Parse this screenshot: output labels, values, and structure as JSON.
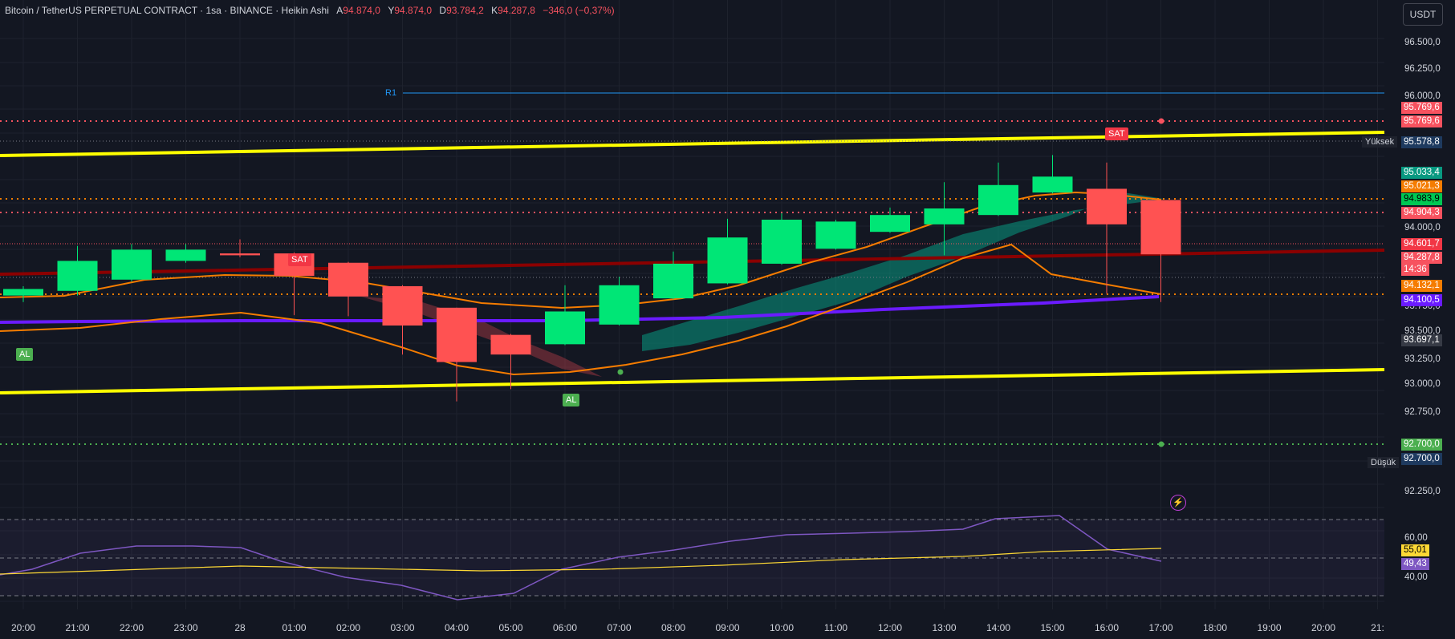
{
  "header": {
    "title": "Bitcoin / TetherUS PERPETUAL CONTRACT · 1sa · BINANCE · Heikin Ashi",
    "open_key": "A",
    "open_val": "94.874,0",
    "high_key": "Y",
    "high_val": "94.874,0",
    "low_key": "D",
    "low_val": "93.784,2",
    "close_key": "K",
    "close_val": "94.287,8",
    "change": "−346,0 (−0,37%)"
  },
  "currency_button": "USDT",
  "price_ticks": [
    "96.500,0",
    "96.250,0",
    "96.000,0",
    "94.750,0",
    "94.000,0",
    "93.750,0",
    "93.500,0",
    "93.250,0",
    "93.000,0",
    "92.750,0",
    "92.500,0",
    "92.250,0"
  ],
  "rsi_ticks": [
    "60,00",
    "40,00"
  ],
  "time_ticks": [
    "20:00",
    "21:00",
    "22:00",
    "23:00",
    "28",
    "01:00",
    "02:00",
    "03:00",
    "04:00",
    "05:00",
    "06:00",
    "07:00",
    "08:00",
    "09:00",
    "10:00",
    "11:00",
    "12:00",
    "13:00",
    "14:00",
    "15:00",
    "16:00",
    "17:00",
    "18:00",
    "19:00",
    "20:00",
    "21:"
  ],
  "price_labels": [
    {
      "text": "95.769,6",
      "bg": "#f7525f",
      "fg": "#ffffff"
    },
    {
      "text": "95.769,6",
      "bg": "#f7525f",
      "fg": "#ffffff"
    },
    {
      "text": "95.578,8",
      "bg": "#1e3a5f",
      "fg": "#ffffff"
    },
    {
      "text": "95.033,4",
      "bg": "#089981",
      "fg": "#ffffff"
    },
    {
      "text": "95.021,3",
      "bg": "#f57c00",
      "fg": "#ffffff"
    },
    {
      "text": "94.983,9",
      "bg": "#00c853",
      "fg": "#000000"
    },
    {
      "text": "94.904,3",
      "bg": "#f7525f",
      "fg": "#ffffff"
    },
    {
      "text": "94.601,7",
      "bg": "#f23645",
      "fg": "#ffffff"
    },
    {
      "text": "94.287,8",
      "bg": "#f7525f",
      "fg": "#ffffff"
    },
    {
      "text": "14:36",
      "bg": "#f7525f",
      "fg": "#ffffff"
    },
    {
      "text": "94.132,1",
      "bg": "#f57c00",
      "fg": "#ffffff"
    },
    {
      "text": "94.100,5",
      "bg": "#6a1bff",
      "fg": "#ffffff"
    },
    {
      "text": "93.697,1",
      "bg": "#363a45",
      "fg": "#ffffff"
    },
    {
      "text": "92.700,0",
      "bg": "#4caf50",
      "fg": "#ffffff"
    },
    {
      "text": "92.700,0",
      "bg": "#1e3a5f",
      "fg": "#ffffff"
    },
    {
      "text": "55,01",
      "bg": "#fdd835",
      "fg": "#000000"
    },
    {
      "text": "49,43",
      "bg": "#7e57c2",
      "fg": "#ffffff"
    }
  ],
  "side_tags": {
    "high": "Yüksek",
    "low": "Düşük"
  },
  "level_label": "R1",
  "signals": [
    "AL",
    "SAT",
    "AL",
    "SAT"
  ],
  "colors": {
    "up": "#00e676",
    "down": "#ff5252",
    "bg": "#131722",
    "grid": "#2a2e39",
    "yellow": "#ffff00",
    "purple": "#6a1bff",
    "orange": "#f57c00",
    "darkred": "#8b0000"
  },
  "chart_data": {
    "type": "candlestick",
    "timeframe": "1sa",
    "candles": [
      {
        "t": "20:00",
        "o": 93.85,
        "c": 93.92,
        "h": 93.95,
        "l": 93.78
      },
      {
        "t": "21:00",
        "o": 93.9,
        "c": 94.22,
        "h": 94.38,
        "l": 93.85
      },
      {
        "t": "22:00",
        "o": 94.02,
        "c": 94.34,
        "h": 94.4,
        "l": 94.0
      },
      {
        "t": "23:00",
        "o": 94.22,
        "c": 94.34,
        "h": 94.4,
        "l": 94.2
      },
      {
        "t": "00:00",
        "o": 94.3,
        "c": 94.28,
        "h": 94.45,
        "l": 94.26
      },
      {
        "t": "01:00",
        "o": 94.3,
        "c": 94.06,
        "h": 94.31,
        "l": 93.64
      },
      {
        "t": "02:00",
        "o": 94.2,
        "c": 93.84,
        "h": 94.21,
        "l": 93.63
      },
      {
        "t": "03:00",
        "o": 93.95,
        "c": 93.53,
        "h": 93.96,
        "l": 93.22
      },
      {
        "t": "04:00",
        "o": 93.72,
        "c": 93.14,
        "h": 93.72,
        "l": 92.72
      },
      {
        "t": "05:00",
        "o": 93.43,
        "c": 93.22,
        "h": 93.44,
        "l": 92.85
      },
      {
        "t": "06:00",
        "o": 93.33,
        "c": 93.68,
        "h": 93.96,
        "l": 93.32
      },
      {
        "t": "07:00",
        "o": 93.54,
        "c": 93.96,
        "h": 94.05,
        "l": 93.53
      },
      {
        "t": "08:00",
        "o": 93.82,
        "c": 94.19,
        "h": 94.32,
        "l": 93.81
      },
      {
        "t": "09:00",
        "o": 93.98,
        "c": 94.47,
        "h": 94.67,
        "l": 93.97
      },
      {
        "t": "10:00",
        "o": 94.19,
        "c": 94.66,
        "h": 94.73,
        "l": 94.18
      },
      {
        "t": "11:00",
        "o": 94.35,
        "c": 94.64,
        "h": 94.66,
        "l": 94.34
      },
      {
        "t": "12:00",
        "o": 94.53,
        "c": 94.71,
        "h": 94.79,
        "l": 94.52
      },
      {
        "t": "13:00",
        "o": 94.61,
        "c": 94.78,
        "h": 95.06,
        "l": 94.28
      },
      {
        "t": "14:00",
        "o": 94.71,
        "c": 95.03,
        "h": 95.27,
        "l": 94.7
      },
      {
        "t": "15:00",
        "o": 94.95,
        "c": 95.12,
        "h": 95.35,
        "l": 94.94
      },
      {
        "t": "16:00",
        "o": 94.99,
        "c": 94.61,
        "h": 95.27,
        "l": 93.87
      },
      {
        "t": "17:00",
        "o": 94.87,
        "c": 94.29,
        "h": 94.87,
        "l": 93.78
      }
    ],
    "levels": {
      "R1": 96.02,
      "sell_level": 95.77,
      "buy_level": 92.7,
      "orange_dotted_top": 94.98,
      "orange_dotted_bottom": 94.13,
      "red_dotted": 94.9
    },
    "rsi": {
      "ylim": [
        30,
        70
      ],
      "rsi_value": 49.43,
      "ma_value": 55.01
    }
  }
}
